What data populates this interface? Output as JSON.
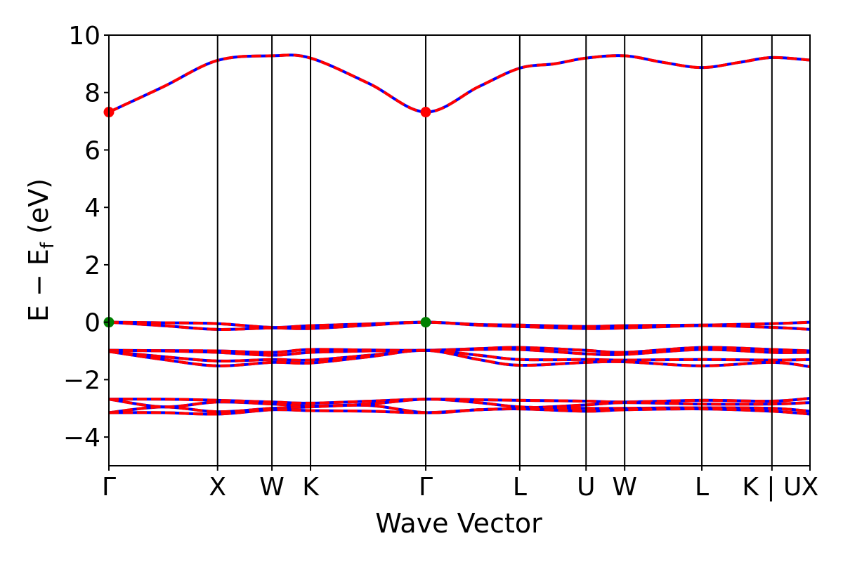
{
  "chart_data": {
    "type": "line",
    "title": "",
    "xlabel": "Wave Vector",
    "ylabel_main": "E − E",
    "ylabel_sub": "f",
    "ylabel_unit": " (eV)",
    "ylim": [
      -5,
      10
    ],
    "yticks": [
      -4,
      -2,
      0,
      2,
      4,
      6,
      8,
      10
    ],
    "ytick_labels": [
      "−4",
      "−2",
      "0",
      "2",
      "4",
      "6",
      "8",
      "10"
    ],
    "x_range": [
      0,
      6.45
    ],
    "kpoints": [
      {
        "label": "Γ",
        "x": 0.0
      },
      {
        "label": "X",
        "x": 1.0
      },
      {
        "label": "W",
        "x": 1.5
      },
      {
        "label": "K",
        "x": 1.855
      },
      {
        "label": "Γ",
        "x": 2.915
      },
      {
        "label": "L",
        "x": 3.78
      },
      {
        "label": "U",
        "x": 4.39
      },
      {
        "label": "W",
        "x": 4.745
      },
      {
        "label": "L",
        "x": 5.455
      },
      {
        "label": "K | U",
        "x": 6.1
      },
      {
        "label": "X",
        "x": 6.45
      }
    ],
    "line_colors": {
      "solid": "#0000ff",
      "dashed": "#ff0000"
    },
    "markers": [
      {
        "band": "cbm",
        "x": 0.0,
        "y": 7.32,
        "color": "#ff0000"
      },
      {
        "band": "cbm",
        "x": 2.915,
        "y": 7.32,
        "color": "#ff0000"
      },
      {
        "band": "vbm",
        "x": 0.0,
        "y": 0.0,
        "color": "#008000"
      },
      {
        "band": "vbm",
        "x": 2.915,
        "y": 0.0,
        "color": "#008000"
      }
    ],
    "series": [
      {
        "x": [
          0,
          0.5,
          1.0,
          1.5,
          1.855,
          2.4,
          2.915,
          3.4,
          3.78,
          4.1,
          4.39,
          4.745,
          5.1,
          5.455,
          5.8,
          6.1,
          6.45
        ],
        "y": [
          7.32,
          8.2,
          9.12,
          9.28,
          9.2,
          8.3,
          7.32,
          8.2,
          8.85,
          9.0,
          9.2,
          9.28,
          9.05,
          8.87,
          9.05,
          9.22,
          9.13
        ]
      },
      {
        "x": [
          0,
          0.5,
          1.0,
          1.5,
          1.855,
          2.4,
          2.915,
          3.4,
          3.78,
          4.39,
          4.745,
          5.455,
          6.1,
          6.45
        ],
        "y": [
          0.0,
          -0.02,
          -0.05,
          -0.18,
          -0.12,
          -0.06,
          0.0,
          -0.08,
          -0.1,
          -0.15,
          -0.12,
          -0.1,
          -0.05,
          0.0
        ]
      },
      {
        "x": [
          0,
          0.5,
          1.0,
          1.5,
          1.855,
          2.4,
          2.915,
          3.4,
          3.78,
          4.39,
          4.745,
          5.455,
          6.1,
          6.45
        ],
        "y": [
          0.0,
          -0.12,
          -0.25,
          -0.2,
          -0.22,
          -0.1,
          0.0,
          -0.1,
          -0.15,
          -0.22,
          -0.2,
          -0.12,
          -0.18,
          -0.25
        ]
      },
      {
        "x": [
          0,
          0.5,
          1.0,
          1.5,
          1.855,
          2.4,
          2.915,
          3.4,
          3.78,
          4.39,
          4.745,
          5.455,
          6.1,
          6.45
        ],
        "y": [
          -0.98,
          -0.99,
          -1.0,
          -1.05,
          -0.95,
          -0.97,
          -0.98,
          -0.92,
          -0.88,
          -0.98,
          -1.05,
          -0.88,
          -0.95,
          -1.0
        ]
      },
      {
        "x": [
          0,
          0.5,
          1.0,
          1.5,
          1.855,
          2.4,
          2.915,
          3.4,
          3.78,
          4.39,
          4.745,
          5.455,
          6.1,
          6.45
        ],
        "y": [
          -0.98,
          -1.0,
          -1.05,
          -1.15,
          -1.05,
          -1.0,
          -0.98,
          -0.95,
          -0.95,
          -1.1,
          -1.12,
          -0.95,
          -1.05,
          -1.05
        ]
      },
      {
        "x": [
          0,
          0.5,
          1.0,
          1.5,
          1.855,
          2.4,
          2.915,
          3.4,
          3.78,
          4.39,
          4.745,
          5.455,
          6.1,
          6.45
        ],
        "y": [
          -1.02,
          -1.2,
          -1.35,
          -1.3,
          -1.32,
          -1.15,
          -0.98,
          -1.15,
          -1.3,
          -1.3,
          -1.32,
          -1.3,
          -1.32,
          -1.3
        ]
      },
      {
        "x": [
          0,
          0.5,
          1.0,
          1.5,
          1.855,
          2.4,
          2.915,
          3.4,
          3.78,
          4.39,
          4.745,
          5.455,
          6.1,
          6.45
        ],
        "y": [
          -1.02,
          -1.3,
          -1.52,
          -1.4,
          -1.42,
          -1.2,
          -0.98,
          -1.3,
          -1.5,
          -1.4,
          -1.38,
          -1.52,
          -1.4,
          -1.55
        ]
      },
      {
        "x": [
          0,
          0.5,
          1.0,
          1.5,
          1.855,
          2.4,
          2.915,
          3.4,
          3.78,
          4.39,
          4.745,
          5.455,
          6.1,
          6.45
        ],
        "y": [
          -2.68,
          -2.68,
          -2.72,
          -2.78,
          -2.82,
          -2.75,
          -2.68,
          -2.7,
          -2.72,
          -2.75,
          -2.78,
          -2.72,
          -2.75,
          -2.65
        ]
      },
      {
        "x": [
          0,
          0.5,
          1.0,
          1.5,
          1.855,
          2.4,
          2.915,
          3.4,
          3.78,
          4.39,
          4.745,
          5.455,
          6.1,
          6.45
        ],
        "y": [
          -2.68,
          -2.95,
          -2.78,
          -2.85,
          -2.92,
          -2.9,
          -3.15,
          -3.05,
          -3.0,
          -2.88,
          -2.8,
          -2.85,
          -2.85,
          -2.8
        ]
      },
      {
        "x": [
          0,
          0.5,
          1.0,
          1.5,
          1.855,
          2.4,
          2.915,
          3.4,
          3.78,
          4.39,
          4.745,
          5.455,
          6.1,
          6.45
        ],
        "y": [
          -3.15,
          -2.95,
          -3.12,
          -3.0,
          -2.95,
          -2.85,
          -2.68,
          -2.8,
          -2.95,
          -3.0,
          -3.0,
          -2.98,
          -3.0,
          -3.1
        ]
      },
      {
        "x": [
          0,
          0.5,
          1.0,
          1.5,
          1.855,
          2.4,
          2.915,
          3.4,
          3.78,
          4.39,
          4.745,
          5.455,
          6.1,
          6.45
        ],
        "y": [
          -3.15,
          -3.15,
          -3.2,
          -3.05,
          -3.08,
          -3.1,
          -3.15,
          -3.05,
          -3.02,
          -3.1,
          -3.05,
          -3.02,
          -3.1,
          -3.2
        ]
      }
    ]
  }
}
